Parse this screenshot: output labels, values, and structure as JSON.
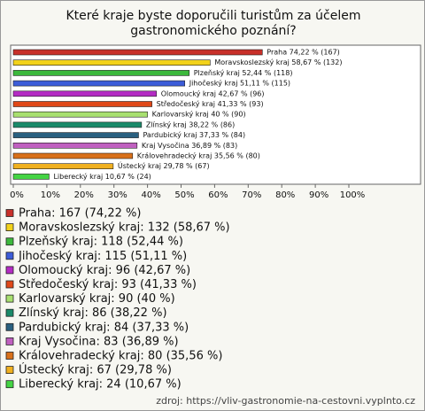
{
  "chart_data": {
    "type": "hbar",
    "title": "Které kraje byste doporučili turistům za účelem gastronomického poznání?",
    "categories": [
      "Praha",
      "Moravskoslezský kraj",
      "Plzeňský kraj",
      "Jihočeský kraj",
      "Olomoucký kraj",
      "Středočeský kraj",
      "Karlovarský kraj",
      "Zlínský kraj",
      "Pardubický kraj",
      "Kraj Vysočina",
      "Královehradecký kraj",
      "Ústecký kraj",
      "Liberecký kraj"
    ],
    "values": [
      74.22,
      58.67,
      52.44,
      51.11,
      42.67,
      41.33,
      40,
      38.22,
      37.33,
      36.89,
      35.56,
      29.78,
      10.67
    ],
    "value_labels": [
      "Praha 74,22 % (167)",
      "Moravskoslezský kraj 58,67 % (132)",
      "Plzeňský kraj 52,44 % (118)",
      "Jihočeský kraj 51,11 % (115)",
      "Olomoucký kraj 42,67 % (96)",
      "Středočeský kraj 41,33 % (93)",
      "Karlovarský kraj 40 % (90)",
      "Zlínský kraj 38,22 % (86)",
      "Pardubický kraj 37,33 % (84)",
      "Kraj Vysočina 36,89 % (83)",
      "Královehradecký kraj 35,56 % (80)",
      "Ústecký kraj 29,78 % (67)",
      "Liberecký kraj 10,67 % (24)"
    ],
    "legend_labels": [
      "Praha: 167 (74,22 %)",
      "Moravskoslezský kraj: 132 (58,67 %)",
      "Plzeňský kraj: 118 (52,44 %)",
      "Jihočeský kraj: 115 (51,11 %)",
      "Olomoucký kraj: 96 (42,67 %)",
      "Středočeský kraj: 93 (41,33 %)",
      "Karlovarský kraj: 90 (40 %)",
      "Zlínský kraj: 86 (38,22 %)",
      "Pardubický kraj: 84 (37,33 %)",
      "Kraj Vysočina: 83 (36,89 %)",
      "Královehradecký kraj: 80 (35,56 %)",
      "Ústecký kraj: 67 (29,78 %)",
      "Liberecký kraj: 24 (10,67 %)"
    ],
    "colors": [
      "#c8302a",
      "#f2d21a",
      "#3cb83c",
      "#3c5cd8",
      "#b42cc4",
      "#e04818",
      "#a8e070",
      "#1a8a6a",
      "#2a6080",
      "#c060c0",
      "#d8701a",
      "#f0b020",
      "#44d444"
    ],
    "xlim": [
      0,
      100
    ],
    "xticks": [
      {
        "value": 0,
        "label": "0%"
      },
      {
        "value": 10,
        "label": "10%"
      },
      {
        "value": 20,
        "label": "20%"
      },
      {
        "value": 30,
        "label": "30%"
      },
      {
        "value": 40,
        "label": "40%"
      },
      {
        "value": 50,
        "label": "50%"
      },
      {
        "value": 60,
        "label": "60%"
      },
      {
        "value": 70,
        "label": "70%"
      },
      {
        "value": 80,
        "label": "80%"
      },
      {
        "value": 90,
        "label": "90%"
      },
      {
        "value": 100,
        "label": "100%"
      }
    ],
    "grid": false,
    "source": "zdroj: https://vliv-gastronomie-na-cestovni.vyplnto.cz"
  }
}
